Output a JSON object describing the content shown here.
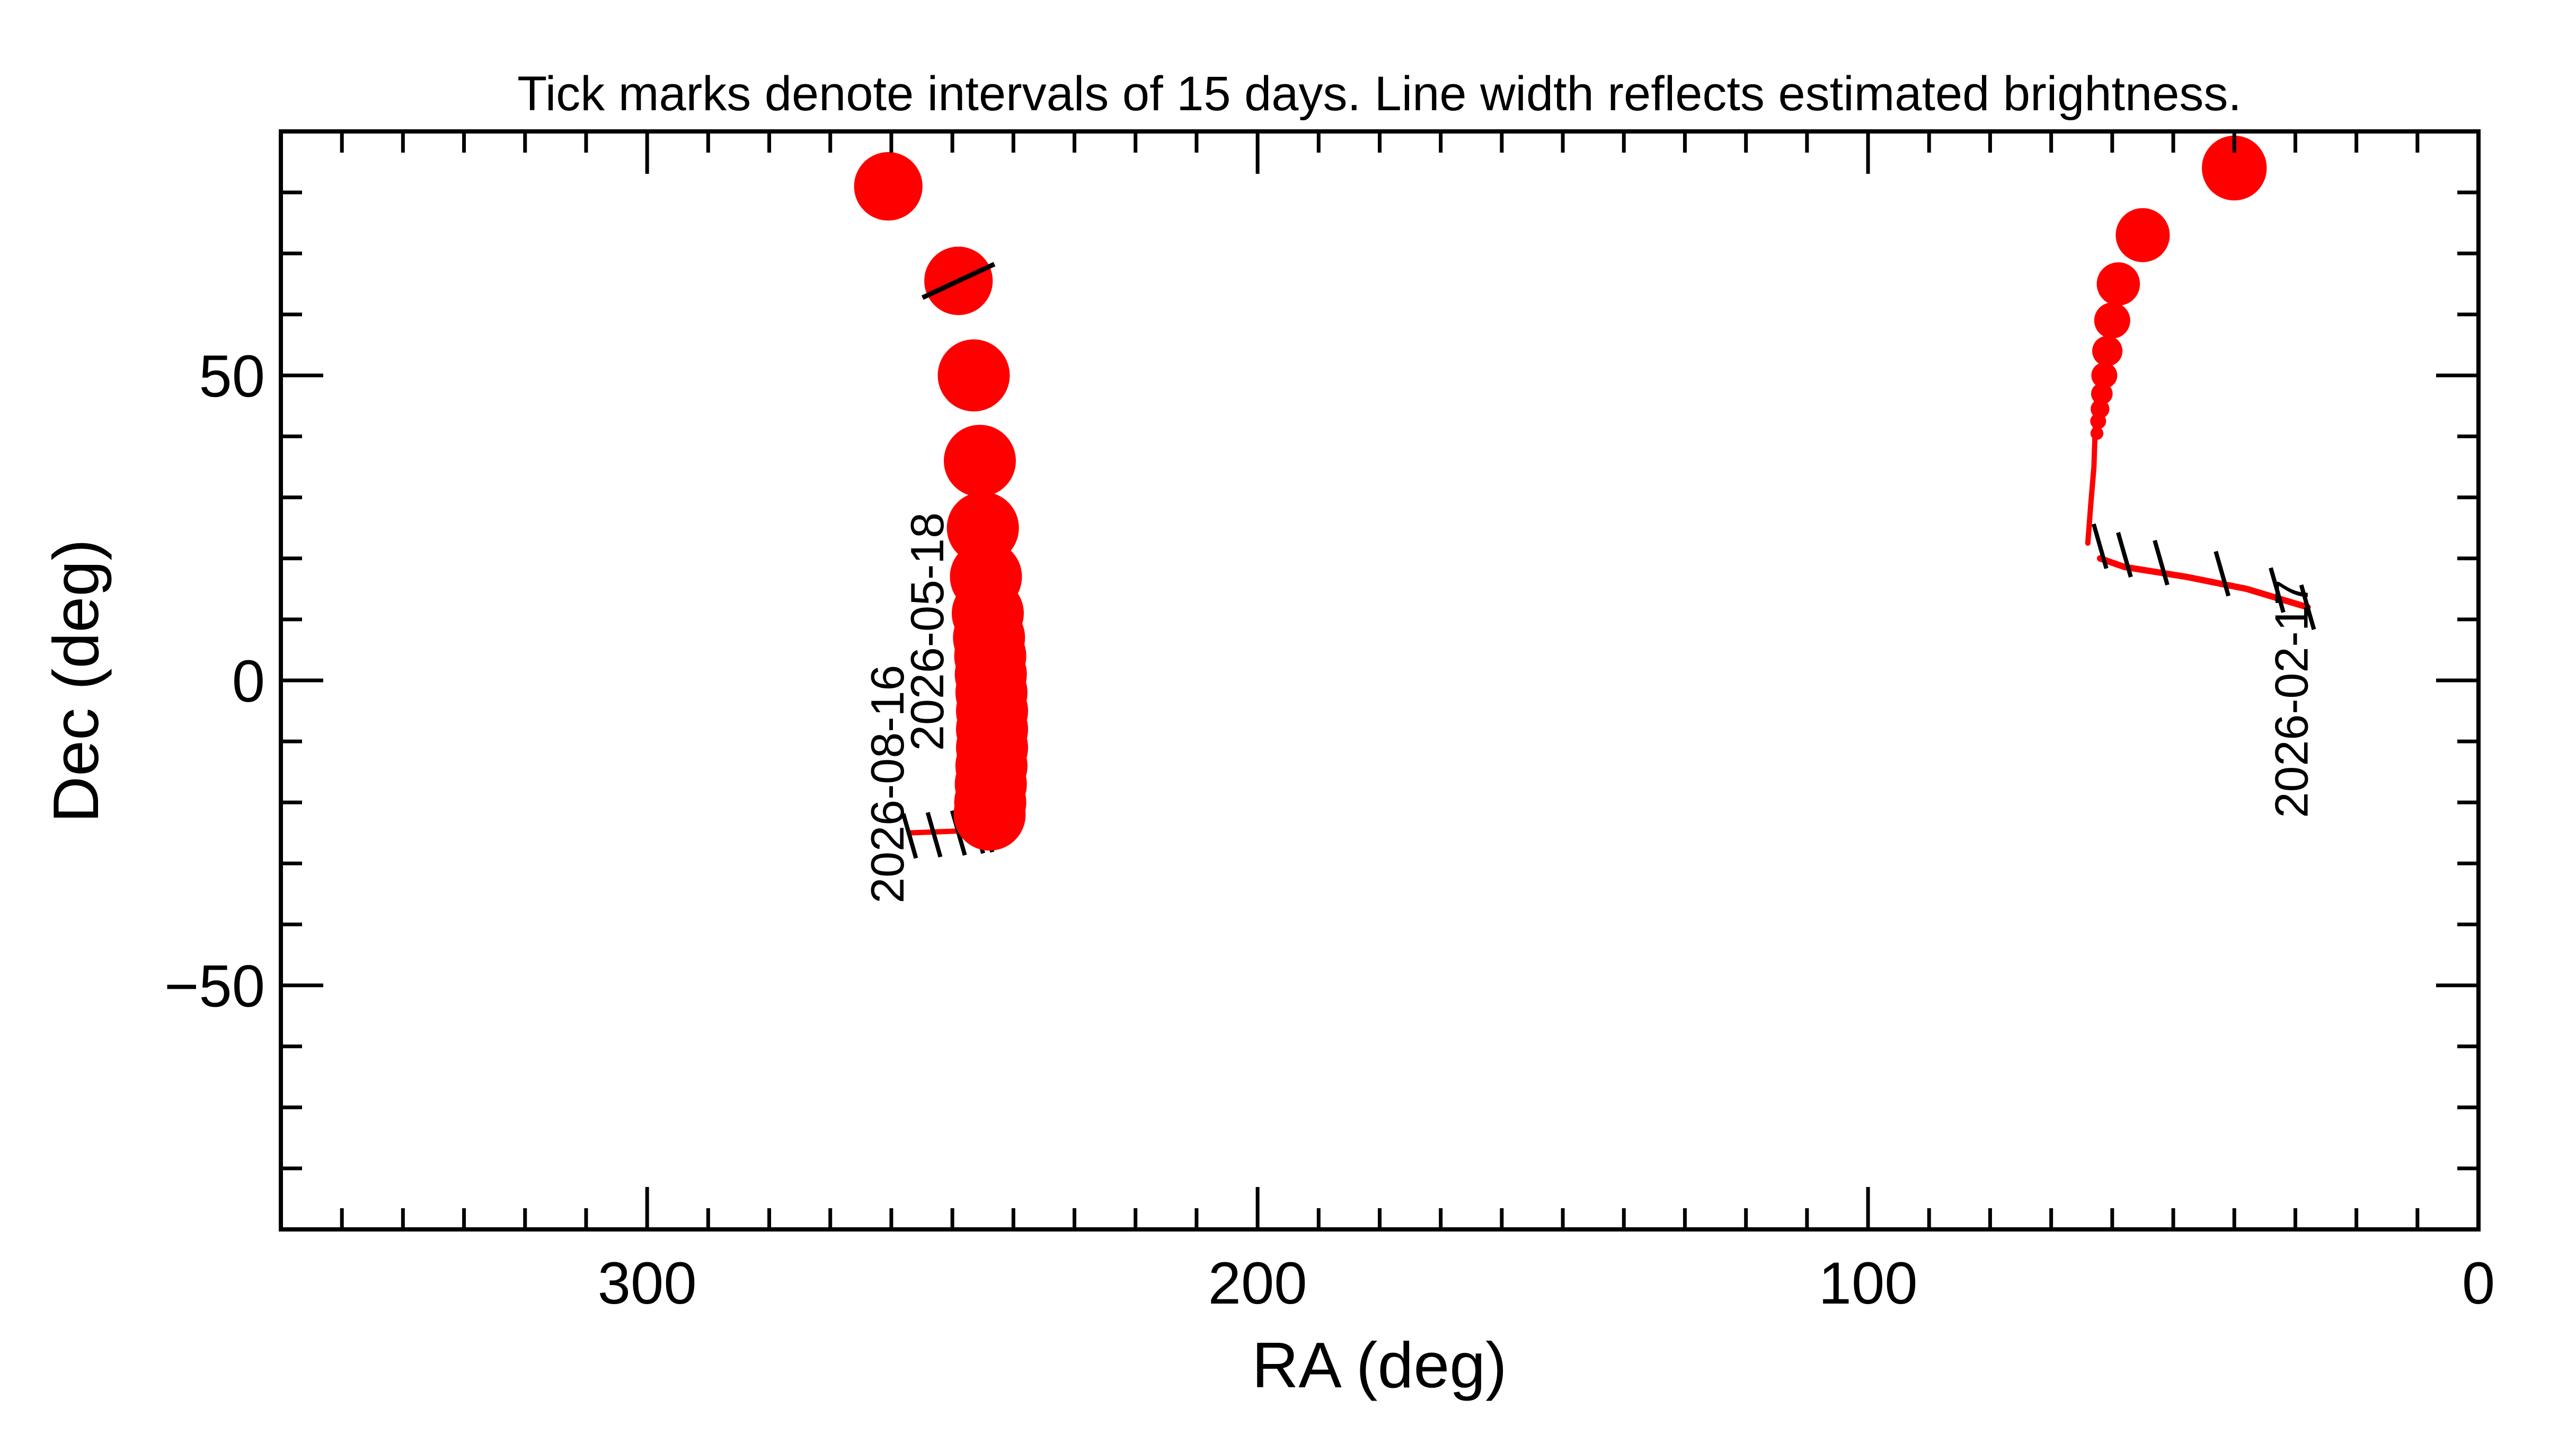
{
  "chart_data": {
    "type": "line",
    "title": "Tick marks denote intervals of 15 days.  Line width reflects estimated brightness.",
    "xlabel": "RA (deg)",
    "ylabel": "Dec (deg)",
    "xlim": [
      360,
      0
    ],
    "ylim": [
      -90,
      90
    ],
    "x_ticks": [
      300,
      200,
      100,
      0
    ],
    "y_ticks": [
      50,
      0,
      -50
    ],
    "x_tick_labels": [
      "300",
      "200",
      "100",
      "0"
    ],
    "y_tick_labels": [
      "50",
      "0",
      "−50"
    ],
    "colors": {
      "track": "#ff0000",
      "tick": "#000000",
      "axis": "#000000"
    },
    "tracks": [
      {
        "points": [
          [
            62,
            20
          ],
          [
            58,
            18.6
          ],
          [
            48,
            17
          ],
          [
            38,
            15
          ],
          [
            28,
            12
          ]
        ],
        "width": 12,
        "ticks": [
          [
            62,
            22
          ],
          [
            58,
            20.6
          ],
          [
            52,
            19.3
          ],
          [
            42,
            17.5
          ],
          [
            33,
            14.8
          ],
          [
            28,
            12
          ]
        ]
      },
      {
        "points": [
          [
            64,
            22.5
          ],
          [
            63.5,
            29
          ],
          [
            63,
            35
          ],
          [
            62.8,
            41
          ],
          [
            62.5,
            48
          ]
        ],
        "width": 10,
        "ticks": []
      },
      {
        "points": [
          [
            257,
            -25
          ],
          [
            252,
            -24.8
          ],
          [
            247,
            -24.6
          ],
          [
            244,
            -24.4
          ]
        ],
        "width": 10,
        "ticks": [
          [
            257,
            -25.5
          ],
          [
            253,
            -25.3
          ],
          [
            249,
            -25
          ],
          [
            246,
            -24.7
          ],
          [
            244.5,
            -24.5
          ]
        ]
      }
    ],
    "dots": [
      {
        "ra": 260.5,
        "dec": 81,
        "r": 0.95
      },
      {
        "ra": 249,
        "dec": 65.5,
        "r": 0.95
      },
      {
        "ra": 246.5,
        "dec": 50,
        "r": 1.0
      },
      {
        "ra": 245.5,
        "dec": 36,
        "r": 1.0
      },
      {
        "ra": 245,
        "dec": 25,
        "r": 1.0
      },
      {
        "ra": 244.5,
        "dec": 17,
        "r": 1.0
      },
      {
        "ra": 244.2,
        "dec": 11,
        "r": 1.0
      },
      {
        "ra": 244,
        "dec": 7,
        "r": 1.0
      },
      {
        "ra": 243.8,
        "dec": 4,
        "r": 1.0
      },
      {
        "ra": 243.7,
        "dec": 1,
        "r": 1.0
      },
      {
        "ra": 243.6,
        "dec": -2,
        "r": 1.0
      },
      {
        "ra": 243.5,
        "dec": -5,
        "r": 1.0
      },
      {
        "ra": 243.5,
        "dec": -8,
        "r": 1.0
      },
      {
        "ra": 243.5,
        "dec": -11,
        "r": 1.0
      },
      {
        "ra": 243.6,
        "dec": -14,
        "r": 1.0
      },
      {
        "ra": 243.7,
        "dec": -17,
        "r": 1.0
      },
      {
        "ra": 243.8,
        "dec": -20,
        "r": 1.0
      },
      {
        "ra": 243.9,
        "dec": -22,
        "r": 1.0
      },
      {
        "ra": 40,
        "dec": 84,
        "r": 0.9
      },
      {
        "ra": 55,
        "dec": 73,
        "r": 0.75
      },
      {
        "ra": 59,
        "dec": 65,
        "r": 0.6
      },
      {
        "ra": 60,
        "dec": 59,
        "r": 0.5
      },
      {
        "ra": 60.8,
        "dec": 54,
        "r": 0.42
      },
      {
        "ra": 61.3,
        "dec": 50,
        "r": 0.36
      },
      {
        "ra": 61.7,
        "dec": 47,
        "r": 0.3
      },
      {
        "ra": 62,
        "dec": 44.5,
        "r": 0.26
      },
      {
        "ra": 62.3,
        "dec": 42.5,
        "r": 0.22
      },
      {
        "ra": 62.5,
        "dec": 40.5,
        "r": 0.18
      }
    ],
    "markers": [
      {
        "ra": 249,
        "dec": 65.5,
        "angle_deg": -25,
        "half_len": 6.5
      }
    ],
    "annotations": [
      {
        "text": "2026-02-17",
        "ra": 28,
        "dec": -3,
        "rotate": -90
      },
      {
        "text": "2026-08-16",
        "ra": 258,
        "dec": -17,
        "rotate": -90
      },
      {
        "text": "2026-05-18",
        "ra": 251.5,
        "dec": 8,
        "rotate": -90
      }
    ],
    "grid": false,
    "legend": "none"
  }
}
